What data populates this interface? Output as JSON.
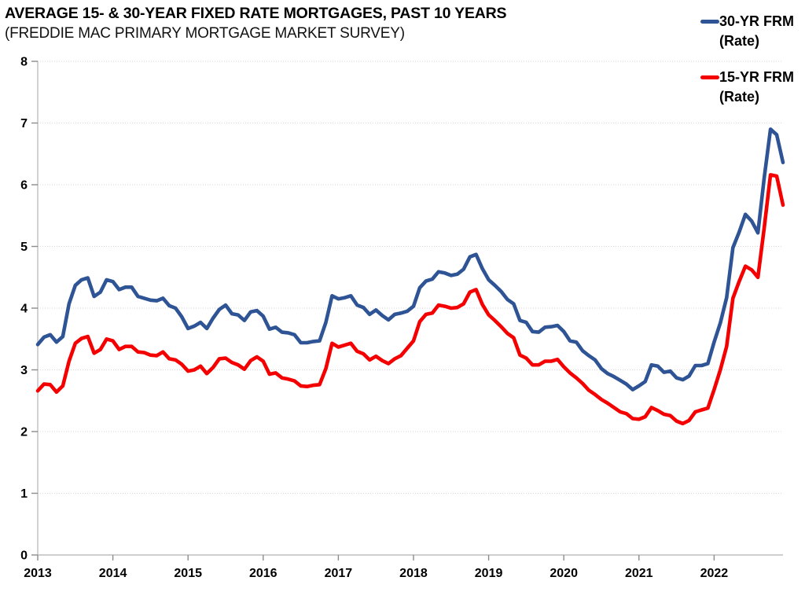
{
  "chart_data": {
    "type": "line",
    "title": "AVERAGE 15- & 30-YEAR FIXED RATE MORTGAGES, PAST 10 YEARS",
    "subtitle": "(FREDDIE MAC PRIMARY MORTGAGE MARKET SURVEY)",
    "x_unit": "month",
    "x_start": "2013-01",
    "x_end": "2022-12",
    "xtick_labels": [
      "2013",
      "2014",
      "2015",
      "2016",
      "2017",
      "2018",
      "2019",
      "2020",
      "2021",
      "2022"
    ],
    "ylim": [
      0,
      8
    ],
    "ytick_step": 1,
    "ytick_labels": [
      "0",
      "1",
      "2",
      "3",
      "4",
      "5",
      "6",
      "7",
      "8"
    ],
    "grid": "horizontal-dotted",
    "legend_position": "top-right",
    "series": [
      {
        "id": "30yr",
        "name": "30-YR FRM (Rate)",
        "legend_line1": "30-YR FRM",
        "legend_line2": "(Rate)",
        "color": "#2E5496",
        "values": [
          3.41,
          3.53,
          3.57,
          3.45,
          3.54,
          4.07,
          4.37,
          4.46,
          4.49,
          4.19,
          4.26,
          4.46,
          4.43,
          4.3,
          4.34,
          4.34,
          4.19,
          4.16,
          4.13,
          4.12,
          4.16,
          4.04,
          4.0,
          3.86,
          3.67,
          3.71,
          3.77,
          3.67,
          3.84,
          3.98,
          4.05,
          3.91,
          3.89,
          3.8,
          3.94,
          3.96,
          3.87,
          3.66,
          3.69,
          3.61,
          3.6,
          3.57,
          3.44,
          3.44,
          3.46,
          3.47,
          3.77,
          4.2,
          4.15,
          4.17,
          4.2,
          4.05,
          4.01,
          3.9,
          3.97,
          3.88,
          3.81,
          3.9,
          3.92,
          3.95,
          4.03,
          4.33,
          4.44,
          4.47,
          4.59,
          4.57,
          4.53,
          4.55,
          4.63,
          4.83,
          4.87,
          4.64,
          4.46,
          4.37,
          4.27,
          4.14,
          4.07,
          3.8,
          3.77,
          3.62,
          3.61,
          3.69,
          3.7,
          3.72,
          3.62,
          3.47,
          3.45,
          3.31,
          3.23,
          3.16,
          3.02,
          2.94,
          2.89,
          2.83,
          2.77,
          2.68,
          2.74,
          2.81,
          3.08,
          3.06,
          2.96,
          2.98,
          2.87,
          2.84,
          2.9,
          3.07,
          3.07,
          3.1,
          3.45,
          3.76,
          4.17,
          4.98,
          5.23,
          5.52,
          5.41,
          5.22,
          6.11,
          6.9,
          6.81,
          6.36
        ]
      },
      {
        "id": "15yr",
        "name": "15-YR FRM (Rate)",
        "legend_line1": "15-YR FRM",
        "legend_line2": "(Rate)",
        "color": "#F50000",
        "values": [
          2.66,
          2.77,
          2.76,
          2.64,
          2.74,
          3.14,
          3.43,
          3.51,
          3.54,
          3.27,
          3.33,
          3.5,
          3.47,
          3.33,
          3.38,
          3.38,
          3.29,
          3.28,
          3.24,
          3.23,
          3.29,
          3.18,
          3.16,
          3.09,
          2.98,
          3.0,
          3.06,
          2.94,
          3.04,
          3.18,
          3.19,
          3.12,
          3.08,
          3.01,
          3.15,
          3.21,
          3.14,
          2.93,
          2.95,
          2.87,
          2.85,
          2.82,
          2.74,
          2.73,
          2.75,
          2.76,
          3.02,
          3.43,
          3.37,
          3.4,
          3.43,
          3.3,
          3.26,
          3.16,
          3.22,
          3.15,
          3.1,
          3.18,
          3.23,
          3.35,
          3.47,
          3.78,
          3.9,
          3.92,
          4.05,
          4.03,
          4.0,
          4.01,
          4.07,
          4.26,
          4.3,
          4.06,
          3.89,
          3.8,
          3.7,
          3.59,
          3.52,
          3.24,
          3.19,
          3.08,
          3.08,
          3.14,
          3.14,
          3.17,
          3.05,
          2.95,
          2.87,
          2.78,
          2.67,
          2.6,
          2.52,
          2.46,
          2.39,
          2.32,
          2.29,
          2.21,
          2.2,
          2.24,
          2.39,
          2.34,
          2.28,
          2.26,
          2.17,
          2.13,
          2.18,
          2.32,
          2.35,
          2.38,
          2.68,
          3.0,
          3.38,
          4.16,
          4.43,
          4.68,
          4.62,
          4.5,
          5.3,
          6.16,
          6.14,
          5.67
        ]
      }
    ]
  }
}
